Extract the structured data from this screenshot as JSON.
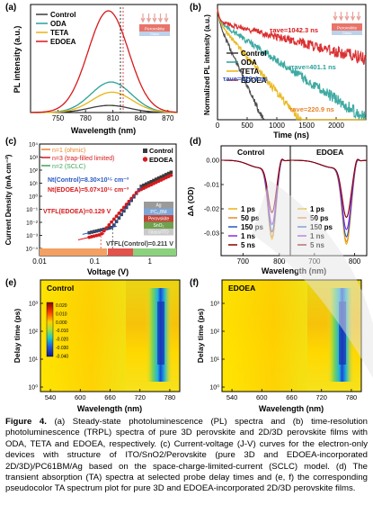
{
  "panel_labels": [
    "(a)",
    "(b)",
    "(c)",
    "(d)",
    "(e)",
    "(f)"
  ],
  "caption": {
    "label": "Figure 4.",
    "text": "(a) Steady-state photoluminescence (PL) spectra and (b) time-resolution photoluminescence (TRPL) spectra of pure 3D perovskite and 2D/3D perovskite films with ODA, TETA and EDOEA, respectively. (c) Current-voltage (J-V) curves for the electron-only devices with structure of ITO/SnO2/Perovskite (pure 3D and EDOEA-incorporated 2D/3D)/PC61BM/Ag based on the space-charge-limited-current (SCLC) model. (d) The transient absorption (TA) spectra at selected probe delay times and (e, f) the corresponding pseudocolor TA spectrum plot for pure 3D and EDOEA-incorporated 2D/3D perovskite films."
  },
  "colors": {
    "control": "#3a3a3a",
    "oda": "#2aa198",
    "teta": "#e8b410",
    "edoea": "#d7191c",
    "blue": "#2b59c3",
    "green": "#3aa655",
    "orange": "#e8842a"
  },
  "chart_data": [
    {
      "panel": "(a)",
      "type": "line",
      "xlabel": "Wavelength (nm)",
      "ylabel": "PL intensity (a.u.)",
      "xlim": [
        720,
        880
      ],
      "xticks": [
        750,
        780,
        810,
        840,
        870
      ],
      "series": [
        {
          "name": "Control",
          "peak_nm": 806,
          "rel_peak": 0.07
        },
        {
          "name": "ODA",
          "peak_nm": 808,
          "rel_peak": 0.3
        },
        {
          "name": "TETA",
          "peak_nm": 809,
          "rel_peak": 0.2
        },
        {
          "name": "EDOEA",
          "peak_nm": 805,
          "rel_peak": 1.0
        }
      ],
      "inset": {
        "top": "Perovskite",
        "bottom": "Glass"
      }
    },
    {
      "panel": "(b)",
      "type": "line",
      "xlabel": "Time (ns)",
      "ylabel": "Normalized PL intensity (a.u.)",
      "xlim": [
        0,
        2500
      ],
      "xticks": [
        0,
        500,
        1000,
        1500,
        2000
      ],
      "yscale": "log",
      "series": [
        {
          "name": "Control",
          "tau_ns": 122.4
        },
        {
          "name": "ODA",
          "tau_ns": 401.1
        },
        {
          "name": "TETA",
          "tau_ns": 220.9
        },
        {
          "name": "EDOEA",
          "tau_ns": 1042.3
        }
      ],
      "annotations": [
        "τave=1042.3 ns",
        "τave=401.1 ns",
        "τave=122.4 ns",
        "τave=220.9 ns"
      ],
      "inset": {
        "top": "Perovskite",
        "bottom": "Glass"
      }
    },
    {
      "panel": "(c)",
      "type": "scatter",
      "xlabel": "Voltage (V)",
      "ylabel": "Current Density (mA cm⁻²)",
      "xscale": "log",
      "yscale": "log",
      "xlim": [
        0.01,
        3
      ],
      "ylim": [
        0.0001,
        10000.0
      ],
      "xticks": [
        "0.01",
        "0.1",
        "1"
      ],
      "yticks": [
        "10⁻⁴",
        "10⁻³",
        "10⁻²",
        "10⁻¹",
        "10⁰",
        "10¹",
        "10²",
        "10³",
        "10⁴"
      ],
      "series": [
        {
          "name": "Control"
        },
        {
          "name": "EDOEA"
        }
      ],
      "fit_legend": [
        "n=1 (ohmic)",
        "n=3 (trap-filled limited)",
        "n=2 (SCLC)"
      ],
      "annotations": {
        "nt_control": "Nt(Control)=8.30×10¹⁵ cm⁻³",
        "nt_edoea": "Nt(EDOEA)=5.07×10¹⁵ cm⁻³",
        "vtfl_edoea": "VTFL(EDOEA)=0.129 V",
        "vtfl_control": "VTFL(Control)=0.211 V"
      },
      "device_stack": [
        "Ag",
        "PC₆₁BM",
        "Perovskite",
        "SnO₂",
        "Glass/ITO"
      ]
    },
    {
      "panel": "(d)",
      "type": "line",
      "xlabel": "Wavelength (nm)",
      "ylabel": "ΔA (OD)",
      "xticks": [
        700,
        800
      ],
      "yticks": [
        "0.00",
        "-0.01",
        "-0.02",
        "-0.03"
      ],
      "subplots": [
        "Control",
        "EDOEA"
      ],
      "series": [
        {
          "name": "1 ps"
        },
        {
          "name": "50 ps"
        },
        {
          "name": "150 ps"
        },
        {
          "name": "1 ns"
        },
        {
          "name": "5 ns"
        }
      ]
    },
    {
      "panel": "(e)",
      "type": "heatmap",
      "title": "Control",
      "xlabel": "Wavelength (nm)",
      "ylabel": "Delay time (ps)",
      "xticks": [
        540,
        600,
        660,
        720,
        780
      ],
      "yticks": [
        "10⁰",
        "10¹",
        "10²",
        "10³"
      ],
      "colorbar_ticks": [
        "0.020",
        "0.010",
        "0.000",
        "-0.010",
        "-0.020",
        "-0.030",
        "-0.040"
      ]
    },
    {
      "panel": "(f)",
      "type": "heatmap",
      "title": "EDOEA",
      "xlabel": "Wavelength (nm)",
      "ylabel": "Delay time (ps)",
      "xticks": [
        540,
        600,
        660,
        720,
        780
      ],
      "yticks": [
        "10⁰",
        "10¹",
        "10²",
        "10³"
      ]
    }
  ]
}
